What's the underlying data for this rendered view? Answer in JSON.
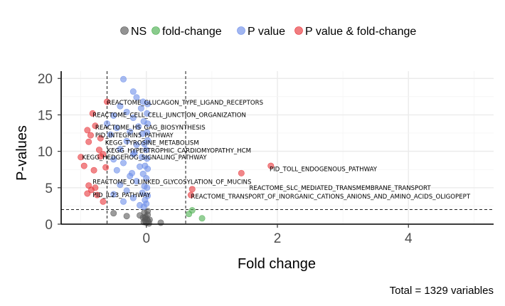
{
  "chart_data": {
    "type": "scatter",
    "xlabel": "Fold change",
    "ylabel": "P-values",
    "caption": "Total = 1329 variables",
    "xlim": [
      -1.3,
      5.3
    ],
    "ylim": [
      0,
      21
    ],
    "x_ticks": [
      0,
      2,
      4
    ],
    "y_ticks": [
      0,
      5,
      10,
      15,
      20
    ],
    "grid": true,
    "legend_position": "top",
    "thresholds": {
      "fold_change": [
        -0.6,
        0.6
      ],
      "p_value": 2
    },
    "legend": [
      {
        "name": "NS",
        "color": "#595959"
      },
      {
        "name": "fold-change",
        "color": "#4caf50"
      },
      {
        "name": "P value",
        "color": "#6e8fea"
      },
      {
        "name": "P value & fold-change",
        "color": "#e8353a"
      }
    ],
    "series": [
      {
        "name": "NS",
        "color": "#595959",
        "points": [
          [
            -0.5,
            1.5
          ],
          [
            -0.3,
            1.1
          ],
          [
            -0.1,
            1.2
          ],
          [
            -0.05,
            0.9
          ],
          [
            -0.04,
            0.3
          ],
          [
            -0.03,
            1.6
          ],
          [
            -0.02,
            0.5
          ],
          [
            -0.01,
            1.0
          ],
          [
            0.0,
            0.2
          ],
          [
            0.01,
            0.7
          ],
          [
            0.02,
            1.3
          ],
          [
            0.03,
            0.4
          ],
          [
            0.04,
            0.1
          ],
          [
            0.02,
            1.8
          ],
          [
            -0.02,
            0.8
          ],
          [
            0.05,
            0.6
          ],
          [
            0.22,
            0.2
          ]
        ]
      },
      {
        "name": "fold-change",
        "color": "#4caf50",
        "points": [
          [
            0.65,
            1.4
          ],
          [
            0.7,
            1.9
          ],
          [
            0.85,
            0.8
          ]
        ]
      },
      {
        "name": "P value",
        "color": "#6e8fea",
        "points": [
          [
            -0.35,
            19.9
          ],
          [
            -0.2,
            18.2
          ],
          [
            -0.4,
            16.2
          ],
          [
            -0.3,
            15.4
          ],
          [
            -0.5,
            14.9
          ],
          [
            -0.2,
            14.6
          ],
          [
            -0.45,
            13.2
          ],
          [
            -0.25,
            12.7
          ],
          [
            -0.55,
            12.3
          ],
          [
            -0.3,
            11.4
          ],
          [
            -0.15,
            10.9
          ],
          [
            -0.4,
            10.3
          ],
          [
            -0.2,
            9.6
          ],
          [
            -0.5,
            8.9
          ],
          [
            -0.35,
            8.4
          ],
          [
            -0.1,
            7.9
          ],
          [
            -0.45,
            7.4
          ],
          [
            -0.25,
            6.6
          ],
          [
            -0.15,
            5.9
          ],
          [
            -0.4,
            5.4
          ],
          [
            -0.3,
            4.6
          ],
          [
            -0.5,
            4.1
          ],
          [
            -0.2,
            3.6
          ],
          [
            -0.35,
            3.1
          ],
          [
            -0.1,
            2.6
          ],
          [
            -0.05,
            16.8
          ],
          [
            -0.08,
            15.9
          ],
          [
            -0.04,
            14.1
          ],
          [
            -0.06,
            12.4
          ],
          [
            -0.03,
            11.0
          ],
          [
            -0.07,
            9.2
          ],
          [
            -0.02,
            8.0
          ],
          [
            -0.05,
            6.9
          ],
          [
            -0.03,
            5.2
          ],
          [
            -0.06,
            4.3
          ],
          [
            -0.02,
            3.3
          ],
          [
            -0.04,
            2.4
          ],
          [
            0.02,
            16.5
          ],
          [
            0.01,
            15.2
          ],
          [
            0.02,
            13.8
          ],
          [
            0.01,
            12.6
          ],
          [
            0.02,
            11.5
          ],
          [
            0.0,
            10.2
          ],
          [
            0.01,
            9.0
          ],
          [
            0.02,
            7.6
          ],
          [
            0.0,
            6.3
          ],
          [
            0.01,
            5.0
          ],
          [
            0.02,
            3.9
          ],
          [
            0.0,
            2.8
          ],
          [
            -0.12,
            13.4
          ],
          [
            -0.18,
            9.8
          ],
          [
            -0.22,
            7.0
          ],
          [
            -0.6,
            13.8
          ],
          [
            -0.15,
            17.4
          ]
        ]
      },
      {
        "name": "P value & fold-change",
        "color": "#e8353a",
        "points": [
          [
            -0.6,
            16.8
          ],
          [
            -0.82,
            15.2
          ],
          [
            -0.78,
            13.5
          ],
          [
            -0.85,
            12.2
          ],
          [
            -0.9,
            12.9
          ],
          [
            -0.7,
            11.8
          ],
          [
            -0.88,
            11.3
          ],
          [
            -0.72,
            10.2
          ],
          [
            -0.66,
            9.6
          ],
          [
            -0.7,
            9.3
          ],
          [
            -1.0,
            9.2
          ],
          [
            -0.95,
            8.0
          ],
          [
            -0.8,
            7.4
          ],
          [
            -0.62,
            7.8
          ],
          [
            -0.88,
            5.3
          ],
          [
            -0.78,
            5.0
          ],
          [
            -0.84,
            4.7
          ],
          [
            -0.9,
            4.2
          ],
          [
            -0.75,
            4.0
          ],
          [
            -0.66,
            3.1
          ],
          [
            1.45,
            7.0
          ],
          [
            1.9,
            8.0
          ],
          [
            0.7,
            4.8
          ],
          [
            0.68,
            4.0
          ]
        ]
      }
    ],
    "annotations": [
      {
        "text": "REACTOME_GLUCAGON_TYPE_LIGAND_RECEPTORS",
        "x": -0.6,
        "y": 16.4
      },
      {
        "text": "REACTOME_CELL_CELL_JUNCTION_ORGANIZATION",
        "x": -0.82,
        "y": 14.7
      },
      {
        "text": "REACTOME_HS_GAG_BIOSYNTHESIS",
        "x": -0.78,
        "y": 13.0
      },
      {
        "text": "PID_INTEGRIN5_PATHWAY",
        "x": -0.78,
        "y": 11.9
      },
      {
        "text": "KEGG_TYROSINE_METABOLISM",
        "x": -0.63,
        "y": 10.9
      },
      {
        "text": "KEGG_HYPERTROPHIC_CARDIOMYOPATHY_HCM",
        "x": -0.6,
        "y": 9.8
      },
      {
        "text": "KEGG_HEDGEHOG_SIGNALING_PATHWAY",
        "x": -0.98,
        "y": 8.9
      },
      {
        "text": "PID_TOLL_ENDOGENOUS_PATHWAY",
        "x": 1.88,
        "y": 7.3
      },
      {
        "text": "REACTOME_O_LINKED_GLYCOSYLATION_OF_MUCINS",
        "x": -0.82,
        "y": 5.5
      },
      {
        "text": "REACTOME_SLC_MEDIATED_TRANSMEMBRANE_TRANSPORT",
        "x": 1.57,
        "y": 4.7
      },
      {
        "text": "PID_IL23_PATHWAY",
        "x": -0.82,
        "y": 3.7
      },
      {
        "text": "REACTOME_TRANSPORT_OF_INORGANIC_CATIONS_ANIONS_AND_AMINO_ACIDS_OLIGOPEPT",
        "x": 0.68,
        "y": 3.5
      }
    ]
  }
}
